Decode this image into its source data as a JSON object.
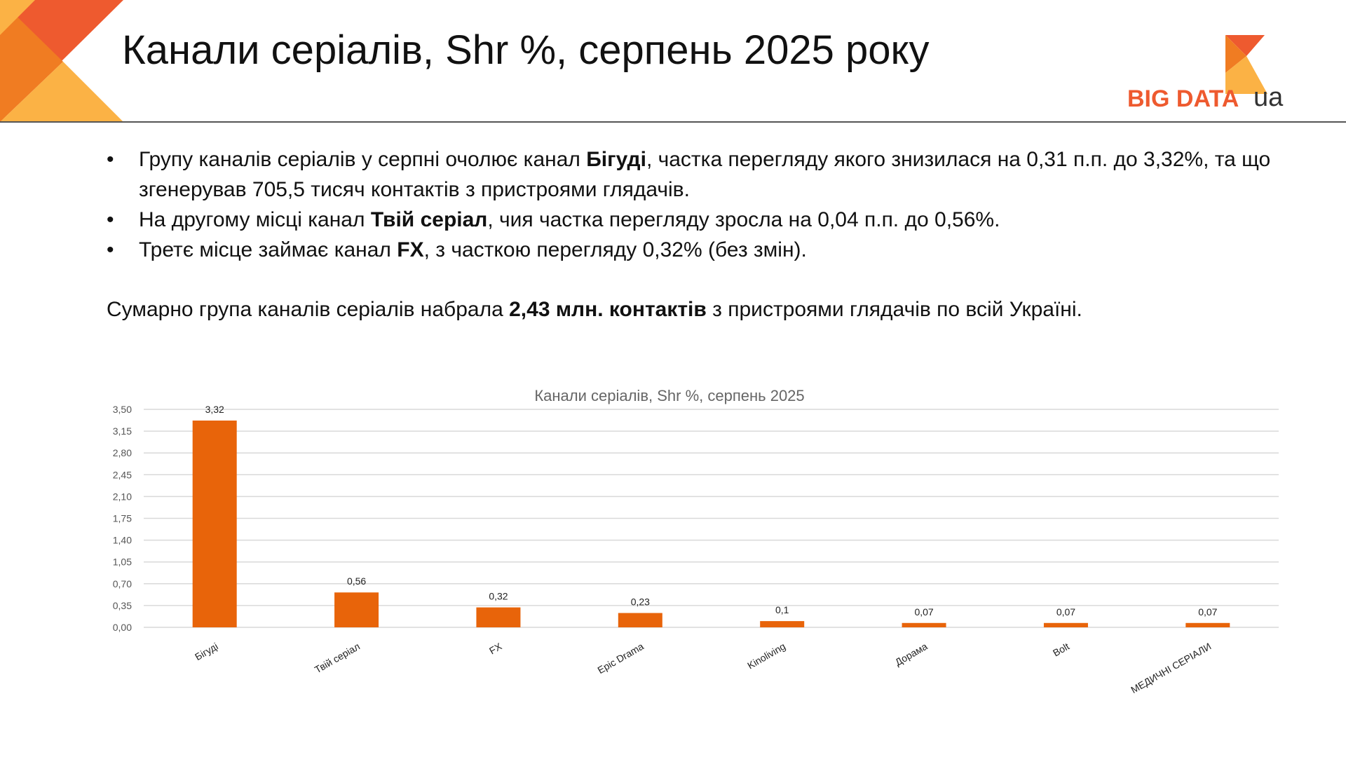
{
  "header": {
    "title": "Канали серіалів, Shr %, серпень 2025 року",
    "logo_text": "BIG DATA",
    "logo_suffix": "ua"
  },
  "bullets": [
    {
      "before": "Групу каналів серіалів у серпні очолює канал ",
      "bold": "Бігуді",
      "after": ", частка перегляду якого знизилася на 0,31 п.п. до 3,32%, та що згенерував 705,5  тисяч контактів з пристроями глядачів."
    },
    {
      "before": "На другому місці канал ",
      "bold": "Твій серіал",
      "after": ", чия частка перегляду зросла на 0,04 п.п. до 0,56%."
    },
    {
      "before": "Третє місце займає канал  ",
      "bold": "FX",
      "after": ", з часткою перегляду 0,32% (без змін)."
    }
  ],
  "summary": {
    "before": "Сумарно група каналів серіалів набрала ",
    "bold": "2,43 млн. контактів",
    "after": " з пристроями глядачів по всій Україні."
  },
  "colors": {
    "bar": "#e8640a",
    "grid": "#d9d9d9",
    "corner_dark": "#f07c22",
    "corner_light": "#fbb245",
    "corner_red": "#ee5a2f",
    "logo_red": "#ee5a2f"
  },
  "chart_data": {
    "type": "bar",
    "title": "Канали серіалів, Shr %, серпень 2025",
    "categories": [
      "Бігуді",
      "Твій серіал",
      "FX",
      "Epic Drama",
      "Kinoliving",
      "Дорама",
      "Bolt",
      "МЕДИЧНІ СЕРІАЛИ"
    ],
    "values": [
      3.32,
      0.56,
      0.32,
      0.23,
      0.1,
      0.07,
      0.07,
      0.07
    ],
    "data_labels": [
      "3,32",
      "0,56",
      "0,32",
      "0,23",
      "0,1",
      "0,07",
      "0,07",
      "0,07"
    ],
    "y_ticks": [
      "0,00",
      "0,35",
      "0,70",
      "1,05",
      "1,40",
      "1,75",
      "2,10",
      "2,45",
      "2,80",
      "3,15",
      "3,50"
    ],
    "ylim": [
      0,
      3.5
    ],
    "grid": true,
    "legend": "none"
  }
}
